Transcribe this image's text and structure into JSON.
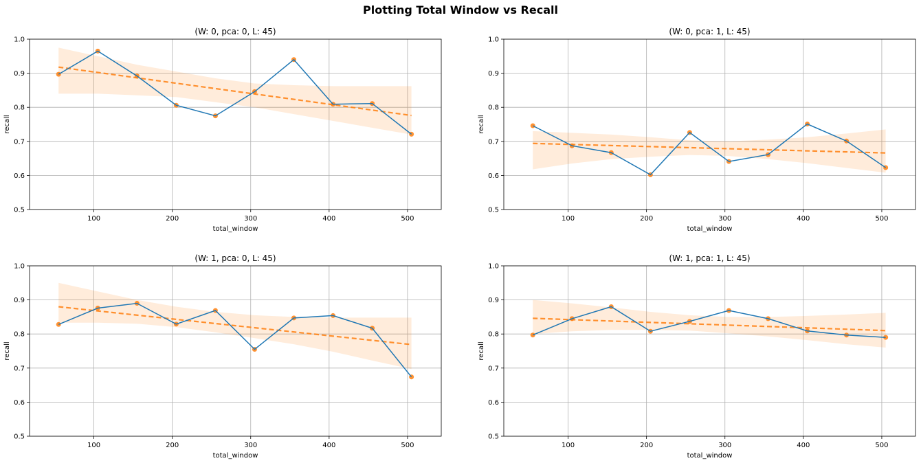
{
  "figure": {
    "suptitle": "Plotting Total Window vs Recall"
  },
  "colors": {
    "line": "#1f77b4",
    "points": "#ff7f0e",
    "trend": "#ff7f0e",
    "band": "#ff7f0e",
    "grid": "#b0b0b0",
    "axis": "#000000"
  },
  "chart_data": [
    {
      "type": "line",
      "title": "(W: 0, pca: 0, L: 45)",
      "xlabel": "total_window",
      "ylabel": "recall",
      "x": [
        55,
        105,
        155,
        205,
        255,
        305,
        355,
        405,
        455,
        505
      ],
      "y": [
        0.897,
        0.965,
        0.892,
        0.806,
        0.775,
        0.846,
        0.94,
        0.809,
        0.811,
        0.721
      ],
      "trend": {
        "start": [
          55,
          0.918
        ],
        "end": [
          505,
          0.776
        ]
      },
      "band_upper": [
        0.975,
        0.95,
        0.925,
        0.905,
        0.885,
        0.87,
        0.865,
        0.862,
        0.862,
        0.862
      ],
      "band_lower": [
        0.84,
        0.84,
        0.835,
        0.83,
        0.815,
        0.8,
        0.78,
        0.76,
        0.74,
        0.72
      ],
      "xlim": [
        18,
        543
      ],
      "ylim": [
        0.5,
        1.0
      ],
      "xticks": [
        100,
        200,
        300,
        400,
        500
      ],
      "yticks": [
        "0.5",
        "0.6",
        "0.7",
        "0.8",
        "0.9",
        "1.0"
      ],
      "grid": true
    },
    {
      "type": "line",
      "title": "(W: 0, pca: 1, L: 45)",
      "xlabel": "total_window",
      "ylabel": "recall",
      "x": [
        55,
        105,
        155,
        205,
        255,
        305,
        355,
        405,
        455,
        505
      ],
      "y": [
        0.746,
        0.687,
        0.667,
        0.602,
        0.726,
        0.641,
        0.661,
        0.751,
        0.701,
        0.623
      ],
      "trend": {
        "start": [
          55,
          0.694
        ],
        "end": [
          505,
          0.666
        ]
      },
      "band_upper": [
        0.73,
        0.725,
        0.72,
        0.712,
        0.703,
        0.7,
        0.705,
        0.712,
        0.723,
        0.735
      ],
      "band_lower": [
        0.618,
        0.635,
        0.648,
        0.655,
        0.66,
        0.657,
        0.648,
        0.636,
        0.622,
        0.608
      ],
      "xlim": [
        18,
        543
      ],
      "ylim": [
        0.5,
        1.0
      ],
      "xticks": [
        100,
        200,
        300,
        400,
        500
      ],
      "yticks": [
        "0.5",
        "0.6",
        "0.7",
        "0.8",
        "0.9",
        "1.0"
      ],
      "grid": true
    },
    {
      "type": "line",
      "title": "(W: 1, pca: 0, L: 45)",
      "xlabel": "total_window",
      "ylabel": "recall",
      "x": [
        55,
        105,
        155,
        205,
        255,
        305,
        355,
        405,
        455,
        505
      ],
      "y": [
        0.828,
        0.876,
        0.89,
        0.829,
        0.869,
        0.755,
        0.847,
        0.854,
        0.817,
        0.674
      ],
      "trend": {
        "start": [
          55,
          0.88
        ],
        "end": [
          505,
          0.769
        ]
      },
      "band_upper": [
        0.95,
        0.925,
        0.9,
        0.88,
        0.865,
        0.855,
        0.85,
        0.848,
        0.848,
        0.848
      ],
      "band_lower": [
        0.833,
        0.833,
        0.83,
        0.82,
        0.805,
        0.788,
        0.77,
        0.748,
        0.722,
        0.697
      ],
      "xlim": [
        18,
        543
      ],
      "ylim": [
        0.5,
        1.0
      ],
      "xticks": [
        100,
        200,
        300,
        400,
        500
      ],
      "yticks": [
        "0.5",
        "0.6",
        "0.7",
        "0.8",
        "0.9",
        "1.0"
      ],
      "grid": true
    },
    {
      "type": "line",
      "title": "(W: 1, pca: 1, L: 45)",
      "xlabel": "total_window",
      "ylabel": "recall",
      "x": [
        55,
        105,
        155,
        205,
        255,
        305,
        355,
        405,
        455,
        505
      ],
      "y": [
        0.797,
        0.845,
        0.88,
        0.808,
        0.837,
        0.869,
        0.845,
        0.809,
        0.797,
        0.79
      ],
      "trend": {
        "start": [
          55,
          0.846
        ],
        "end": [
          505,
          0.81
        ]
      },
      "band_upper": [
        0.9,
        0.89,
        0.878,
        0.865,
        0.855,
        0.85,
        0.85,
        0.853,
        0.857,
        0.862
      ],
      "band_lower": [
        0.8,
        0.808,
        0.812,
        0.812,
        0.81,
        0.802,
        0.793,
        0.782,
        0.77,
        0.76
      ],
      "xlim": [
        18,
        543
      ],
      "ylim": [
        0.5,
        1.0
      ],
      "xticks": [
        100,
        200,
        300,
        400,
        500
      ],
      "yticks": [
        "0.5",
        "0.6",
        "0.7",
        "0.8",
        "0.9",
        "1.0"
      ],
      "grid": true
    }
  ]
}
